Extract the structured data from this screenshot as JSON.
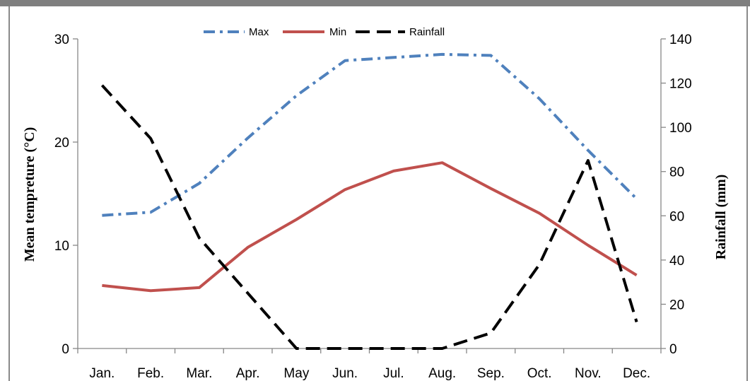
{
  "chart_data": {
    "type": "line",
    "categories": [
      "Jan.",
      "Feb.",
      "Mar.",
      "Apr.",
      "May",
      "Jun.",
      "Jul.",
      "Aug.",
      "Sep.",
      "Oct.",
      "Nov.",
      "Dec."
    ],
    "series": [
      {
        "name": "Max",
        "axis": "left",
        "color": "#4f81bd",
        "style": "dash-dot",
        "values": [
          12.9,
          13.2,
          16.0,
          20.4,
          24.5,
          27.9,
          28.2,
          28.5,
          28.4,
          24.2,
          19.2,
          14.5
        ]
      },
      {
        "name": "Min",
        "axis": "left",
        "color": "#c0504d",
        "style": "solid",
        "values": [
          6.1,
          5.6,
          5.9,
          9.8,
          12.5,
          15.4,
          17.2,
          18.0,
          15.5,
          13.1,
          10.0,
          7.1
        ]
      },
      {
        "name": "Rainfall",
        "axis": "right",
        "color": "#000000",
        "style": "dashed",
        "values": [
          119,
          95,
          50,
          25,
          0,
          0,
          0,
          0,
          7,
          38,
          85,
          12
        ]
      }
    ],
    "ylabel": "Mean tempreture  (°C)",
    "y2label": "Rainfall (mm)",
    "ylim": [
      0,
      30
    ],
    "y2lim": [
      0,
      140
    ],
    "yticks": [
      0,
      10,
      20,
      30
    ],
    "y2ticks": [
      0,
      20,
      40,
      60,
      80,
      100,
      120,
      140
    ],
    "legend_position": "top-center",
    "grid": false
  }
}
